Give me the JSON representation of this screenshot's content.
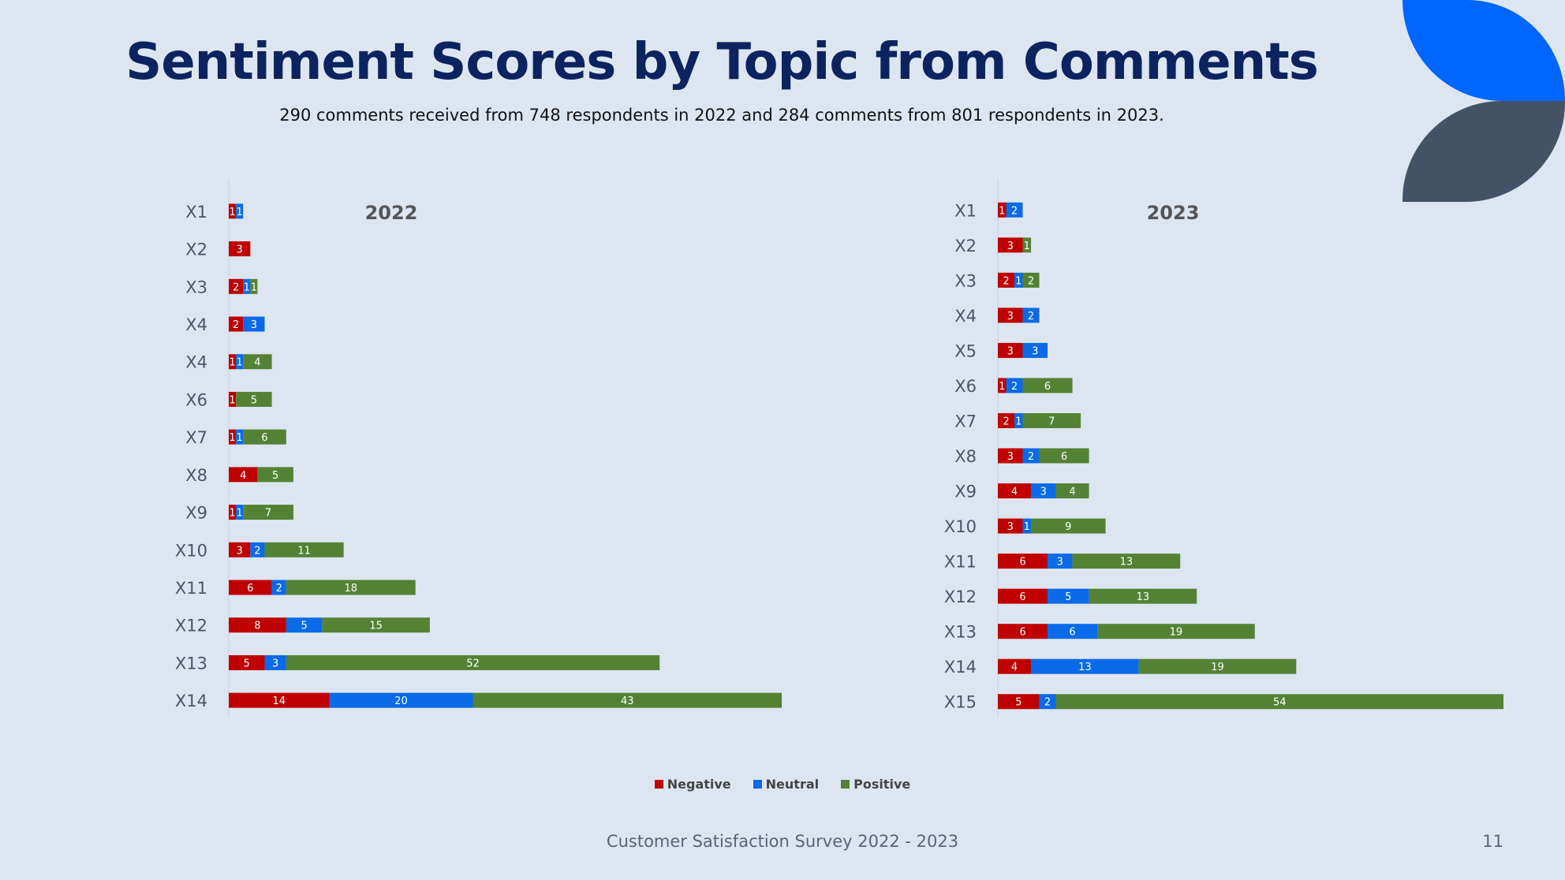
{
  "header": {
    "title": "Sentiment Scores by Topic from Comments",
    "subtitle": "290 comments received from 748 respondents in 2022 and 284 comments from 801 respondents in 2023."
  },
  "colors": {
    "negative": "#c00000",
    "neutral": "#0a6ae8",
    "positive": "#548235",
    "title": "#0b2460",
    "deco_blue": "#0066ff",
    "deco_slate": "#445268"
  },
  "chart_data": [
    {
      "type": "bar",
      "orientation": "horizontal",
      "stacked": true,
      "title": "2022",
      "categories": [
        "X1",
        "X2",
        "X3",
        "X4",
        "X4",
        "X6",
        "X7",
        "X8",
        "X9",
        "X10",
        "X11",
        "X12",
        "X13",
        "X14"
      ],
      "series": [
        {
          "name": "Negative",
          "values": [
            1,
            3,
            2,
            2,
            1,
            1,
            1,
            4,
            1,
            3,
            6,
            8,
            5,
            14
          ]
        },
        {
          "name": "Neutral",
          "values": [
            1,
            0,
            1,
            3,
            1,
            0,
            1,
            0,
            1,
            2,
            2,
            5,
            3,
            20
          ]
        },
        {
          "name": "Positive",
          "values": [
            0,
            0,
            1,
            0,
            4,
            5,
            6,
            5,
            7,
            11,
            18,
            15,
            52,
            43
          ]
        }
      ],
      "xlim": [
        0,
        77
      ],
      "data_labels": true,
      "grid": false
    },
    {
      "type": "bar",
      "orientation": "horizontal",
      "stacked": true,
      "title": "2023",
      "categories": [
        "X1",
        "X2",
        "X3",
        "X4",
        "X5",
        "X6",
        "X7",
        "X8",
        "X9",
        "X10",
        "X11",
        "X12",
        "X13",
        "X14",
        "X15"
      ],
      "series": [
        {
          "name": "Negative",
          "values": [
            1,
            3,
            2,
            3,
            3,
            1,
            2,
            3,
            4,
            3,
            6,
            6,
            6,
            4,
            5
          ]
        },
        {
          "name": "Neutral",
          "values": [
            2,
            0,
            1,
            2,
            3,
            2,
            1,
            2,
            3,
            1,
            3,
            5,
            6,
            13,
            2
          ]
        },
        {
          "name": "Positive",
          "values": [
            0,
            1,
            2,
            0,
            0,
            6,
            7,
            6,
            4,
            9,
            13,
            13,
            19,
            19,
            54
          ]
        }
      ],
      "xlim": [
        0,
        61
      ],
      "data_labels": true,
      "grid": false
    }
  ],
  "legend": {
    "placement": "bottom-center",
    "items": [
      {
        "label": "Negative",
        "color": "#c00000"
      },
      {
        "label": "Neutral",
        "color": "#0a6ae8"
      },
      {
        "label": "Positive",
        "color": "#548235"
      }
    ]
  },
  "footer": {
    "text": "Customer Satisfaction Survey 2022 - 2023",
    "page_number": "11"
  }
}
